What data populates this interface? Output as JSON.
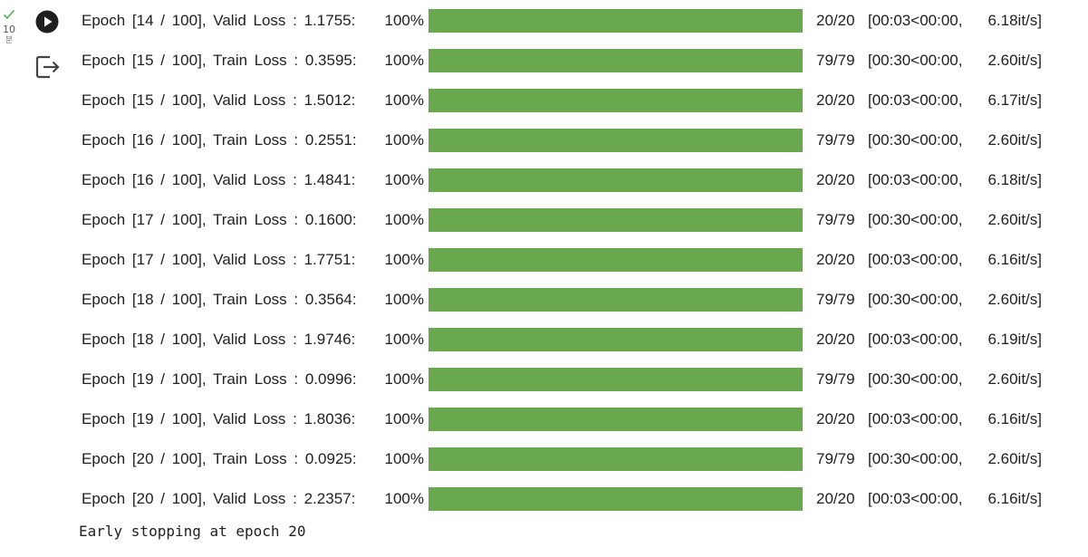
{
  "cell": {
    "exec_number": "10",
    "exec_unit": "분",
    "status_color": "#4caf50",
    "progress_color": "#6aa84f",
    "run_icon": "play-circle-icon",
    "output_icon": "output-arrow-icon"
  },
  "rows": [
    {
      "desc": "Epoch [14 / 100], Valid Loss : 1.1755:",
      "pct": "100%",
      "progress": 1.0,
      "count": "20/20",
      "time": "[00:03<00:00,",
      "rate": "6.18it/s]"
    },
    {
      "desc": "Epoch [15 / 100], Train Loss : 0.3595:",
      "pct": "100%",
      "progress": 1.0,
      "count": "79/79",
      "time": "[00:30<00:00,",
      "rate": "2.60it/s]"
    },
    {
      "desc": "Epoch [15 / 100], Valid Loss : 1.5012:",
      "pct": "100%",
      "progress": 1.0,
      "count": "20/20",
      "time": "[00:03<00:00,",
      "rate": "6.17it/s]"
    },
    {
      "desc": "Epoch [16 / 100], Train Loss : 0.2551:",
      "pct": "100%",
      "progress": 1.0,
      "count": "79/79",
      "time": "[00:30<00:00,",
      "rate": "2.60it/s]"
    },
    {
      "desc": "Epoch [16 / 100], Valid Loss : 1.4841:",
      "pct": "100%",
      "progress": 1.0,
      "count": "20/20",
      "time": "[00:03<00:00,",
      "rate": "6.18it/s]"
    },
    {
      "desc": "Epoch [17 / 100], Train Loss : 0.1600:",
      "pct": "100%",
      "progress": 1.0,
      "count": "79/79",
      "time": "[00:30<00:00,",
      "rate": "2.60it/s]"
    },
    {
      "desc": "Epoch [17 / 100], Valid Loss : 1.7751:",
      "pct": "100%",
      "progress": 1.0,
      "count": "20/20",
      "time": "[00:03<00:00,",
      "rate": "6.16it/s]"
    },
    {
      "desc": "Epoch [18 / 100], Train Loss : 0.3564:",
      "pct": "100%",
      "progress": 1.0,
      "count": "79/79",
      "time": "[00:30<00:00,",
      "rate": "2.60it/s]"
    },
    {
      "desc": "Epoch [18 / 100], Valid Loss : 1.9746:",
      "pct": "100%",
      "progress": 1.0,
      "count": "20/20",
      "time": "[00:03<00:00,",
      "rate": "6.19it/s]"
    },
    {
      "desc": "Epoch [19 / 100], Train Loss : 0.0996:",
      "pct": "100%",
      "progress": 1.0,
      "count": "79/79",
      "time": "[00:30<00:00,",
      "rate": "2.60it/s]"
    },
    {
      "desc": "Epoch [19 / 100], Valid Loss : 1.8036:",
      "pct": "100%",
      "progress": 1.0,
      "count": "20/20",
      "time": "[00:03<00:00,",
      "rate": "6.16it/s]"
    },
    {
      "desc": "Epoch [20 / 100], Train Loss : 0.0925:",
      "pct": "100%",
      "progress": 1.0,
      "count": "79/79",
      "time": "[00:30<00:00,",
      "rate": "2.60it/s]"
    },
    {
      "desc": "Epoch [20 / 100], Valid Loss : 2.2357:",
      "pct": "100%",
      "progress": 1.0,
      "count": "20/20",
      "time": "[00:03<00:00,",
      "rate": "6.16it/s]"
    }
  ],
  "final_message": "Early stopping at epoch 20"
}
